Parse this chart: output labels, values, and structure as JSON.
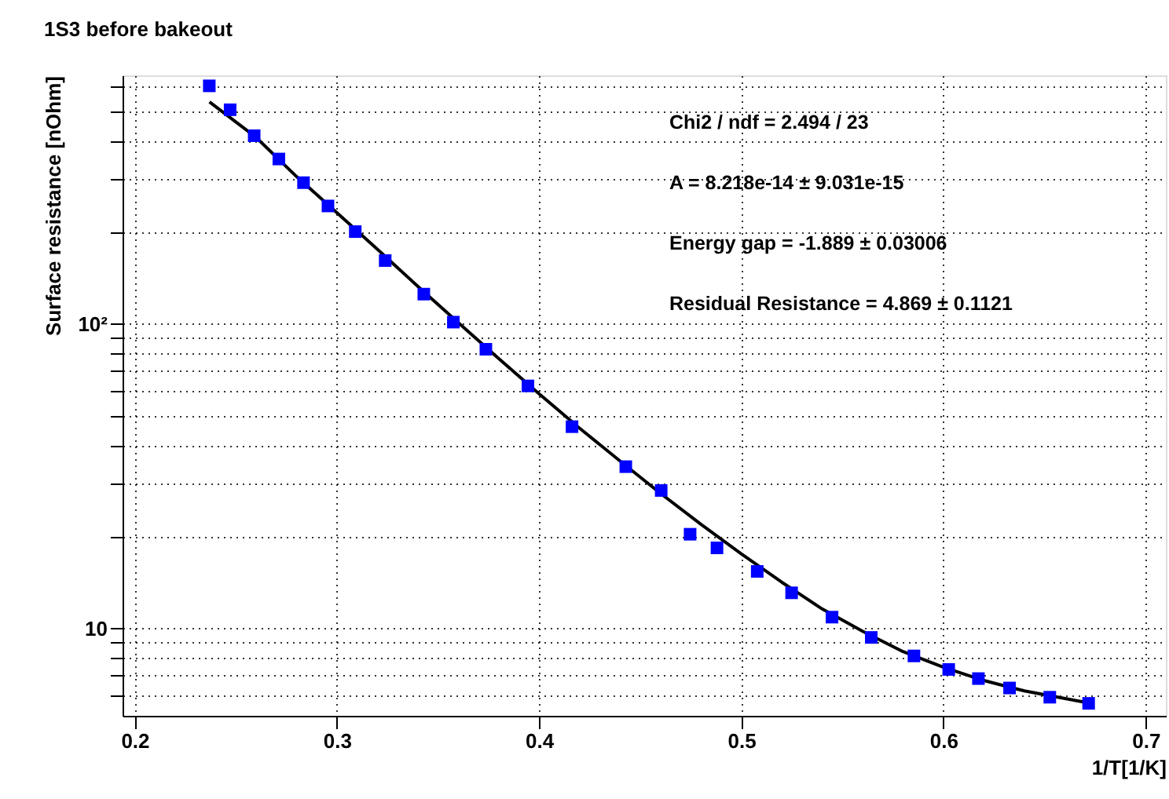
{
  "chart_data": {
    "type": "scatter",
    "title": "1S3 before bakeout",
    "xlabel": "1/T[1/K]",
    "ylabel": "Surface resistance [nOhm]",
    "annotations": [
      "Chi2 / ndf = 2.494 / 23",
      "A       = 8.218e-14 ± 9.031e-15",
      "Energy gap = -1.889  ± 0.03006",
      "Residual Resistance = 4.869  ± 0.1121"
    ],
    "series": [
      {
        "type": "line",
        "marker": "none",
        "color": "#000000",
        "x": [
          0.237,
          0.26,
          0.28,
          0.3,
          0.32,
          0.34,
          0.36,
          0.38,
          0.4,
          0.42,
          0.44,
          0.46,
          0.48,
          0.5,
          0.52,
          0.54,
          0.56,
          0.58,
          0.6,
          0.62,
          0.64,
          0.67
        ],
        "values": [
          536,
          410,
          305,
          232,
          176,
          133,
          101,
          77,
          59,
          45.5,
          35.5,
          27.8,
          22.0,
          17.6,
          14.2,
          11.6,
          9.8,
          8.4,
          7.46,
          6.75,
          6.24,
          5.73
        ]
      },
      {
        "color": "#0000ff",
        "x": [
          0.2369,
          0.2472,
          0.2591,
          0.2713,
          0.2835,
          0.2956,
          0.3091,
          0.3239,
          0.343,
          0.3576,
          0.3737,
          0.3945,
          0.4163,
          0.4429,
          0.4604,
          0.4747,
          0.488,
          0.5079,
          0.5249,
          0.5449,
          0.5643,
          0.5854,
          0.6026,
          0.6173,
          0.6327,
          0.6526,
          0.6718
        ],
        "values": [
          605,
          505,
          415,
          348,
          291,
          244,
          201,
          161.5,
          125.3,
          101.4,
          82.6,
          62.6,
          46.0,
          34.0,
          28.4,
          20.4,
          18.4,
          15.4,
          13.1,
          10.9,
          9.35,
          8.13,
          7.34,
          6.85,
          6.38,
          5.95,
          5.68
        ]
      }
    ],
    "xlim": [
      0.194,
      0.71
    ],
    "xticks": [
      0.2,
      0.3,
      0.4,
      0.5,
      0.6,
      0.7
    ],
    "ylim": [
      5.17,
      655
    ],
    "log": "y",
    "yticks": [
      {
        "value": 6,
        "label": null
      },
      {
        "value": 7,
        "label": null
      },
      {
        "value": 8,
        "label": null
      },
      {
        "value": 9,
        "label": null
      },
      {
        "value": 10,
        "label": "10"
      },
      {
        "value": 20,
        "label": null
      },
      {
        "value": 30,
        "label": null
      },
      {
        "value": 40,
        "label": null
      },
      {
        "value": 50,
        "label": null
      },
      {
        "value": 60,
        "label": null
      },
      {
        "value": 70,
        "label": null
      },
      {
        "value": 80,
        "label": null
      },
      {
        "value": 90,
        "label": null
      },
      {
        "value": 100,
        "label": "10²"
      },
      {
        "value": 200,
        "label": null
      },
      {
        "value": 300,
        "label": null
      },
      {
        "value": 400,
        "label": null
      },
      {
        "value": 500,
        "label": null
      },
      {
        "value": 600,
        "label": null
      }
    ],
    "grid": true,
    "marker": "square"
  }
}
